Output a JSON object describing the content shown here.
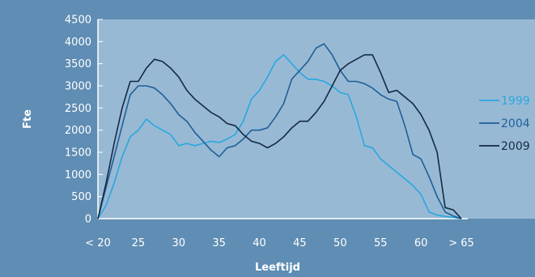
{
  "chart_data": {
    "type": "line",
    "title": "",
    "xlabel": "Leeftijd",
    "ylabel": "Fte",
    "ylim": [
      0,
      4500
    ],
    "yticks": [
      0,
      500,
      1000,
      1500,
      2000,
      2500,
      3000,
      3500,
      4000,
      4500
    ],
    "xlim": [
      20,
      65
    ],
    "xticks": [
      {
        "x": 20,
        "label": "< 20"
      },
      {
        "x": 25,
        "label": "25"
      },
      {
        "x": 30,
        "label": "30"
      },
      {
        "x": 35,
        "label": "35"
      },
      {
        "x": 40,
        "label": "40"
      },
      {
        "x": 45,
        "label": "45"
      },
      {
        "x": 50,
        "label": "50"
      },
      {
        "x": 55,
        "label": "55"
      },
      {
        "x": 60,
        "label": "60"
      },
      {
        "x": 65,
        "label": "> 65"
      }
    ],
    "grid": true,
    "legend_position": "right",
    "x": [
      20,
      21,
      22,
      23,
      24,
      25,
      26,
      27,
      28,
      29,
      30,
      31,
      32,
      33,
      34,
      35,
      36,
      37,
      38,
      39,
      40,
      41,
      42,
      43,
      44,
      45,
      46,
      47,
      48,
      49,
      50,
      51,
      52,
      53,
      54,
      55,
      56,
      57,
      58,
      59,
      60,
      61,
      62,
      63,
      64,
      65
    ],
    "series": [
      {
        "name": "1999",
        "color": "#29a8df",
        "values": [
          0,
          300,
          800,
          1400,
          1850,
          2000,
          2250,
          2100,
          2000,
          1900,
          1650,
          1700,
          1650,
          1700,
          1750,
          1720,
          1800,
          1900,
          2200,
          2700,
          2900,
          3200,
          3550,
          3700,
          3500,
          3300,
          3150,
          3150,
          3100,
          3000,
          2850,
          2800,
          2300,
          1650,
          1600,
          1350,
          1200,
          1050,
          900,
          750,
          550,
          150,
          80,
          50,
          30,
          0
        ]
      },
      {
        "name": "2004",
        "color": "#1e5f99",
        "values": [
          0,
          700,
          1400,
          2100,
          2800,
          3000,
          3000,
          2950,
          2800,
          2600,
          2350,
          2200,
          1950,
          1750,
          1550,
          1400,
          1600,
          1650,
          1800,
          2000,
          2000,
          2050,
          2300,
          2600,
          3150,
          3350,
          3550,
          3850,
          3950,
          3700,
          3350,
          3100,
          3100,
          3050,
          2950,
          2800,
          2700,
          2650,
          2100,
          1450,
          1350,
          950,
          500,
          150,
          60,
          0
        ]
      },
      {
        "name": "2009",
        "color": "#152a44",
        "values": [
          0,
          800,
          1700,
          2500,
          3100,
          3100,
          3400,
          3600,
          3550,
          3400,
          3200,
          2900,
          2700,
          2550,
          2400,
          2300,
          2150,
          2100,
          1900,
          1750,
          1700,
          1600,
          1700,
          1850,
          2050,
          2200,
          2200,
          2400,
          2650,
          3000,
          3350,
          3500,
          3600,
          3700,
          3700,
          3300,
          2850,
          2900,
          2750,
          2600,
          2350,
          2000,
          1500,
          250,
          200,
          0
        ]
      }
    ]
  }
}
